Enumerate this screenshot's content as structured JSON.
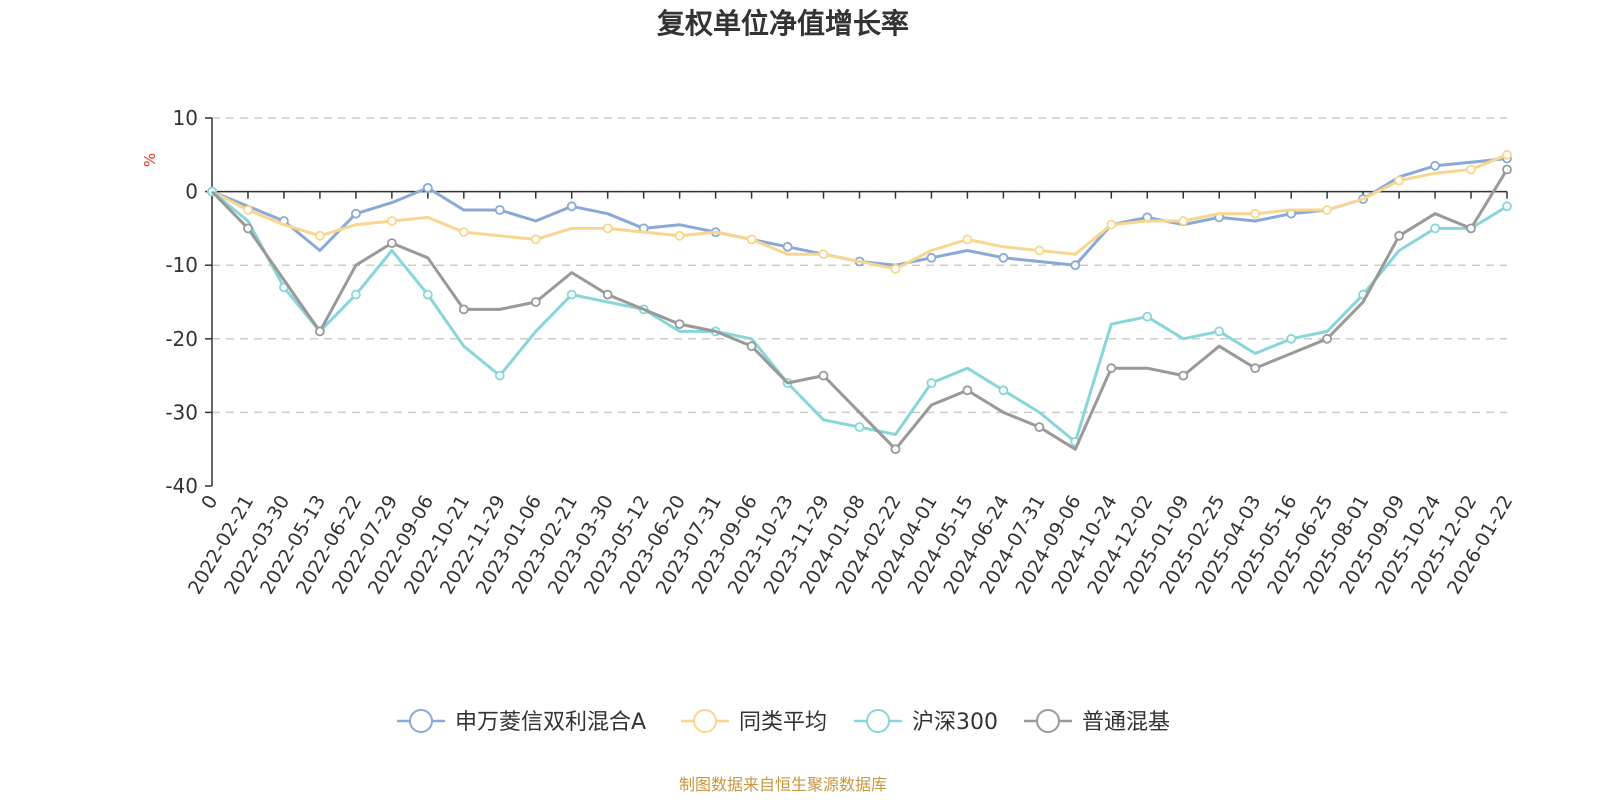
{
  "chart_data": {
    "type": "line",
    "title": "复权单位净值增长率",
    "ylabel": "%",
    "ylim": [
      -40,
      10
    ],
    "yticks": [
      10,
      0,
      -10,
      -20,
      -30,
      -40
    ],
    "grid": true,
    "legend_position": "bottom-center",
    "source": "制图数据来自恒生聚源数据库",
    "x_labels": [
      "0",
      "2022-02-21",
      "2022-03-30",
      "2022-05-13",
      "2022-06-22",
      "2022-07-29",
      "2022-09-06",
      "2022-10-21",
      "2022-11-29",
      "2023-01-06",
      "2023-02-21",
      "2023-03-30",
      "2023-05-12",
      "2023-06-20",
      "2023-07-31",
      "2023-09-06",
      "2023-10-23",
      "2023-11-29",
      "2024-01-08",
      "2024-02-22",
      "2024-04-01",
      "2024-05-15",
      "2024-06-24",
      "2024-07-31",
      "2024-09-06",
      "2024-10-24",
      "2024-12-02",
      "2025-01-09",
      "2025-02-25",
      "2025-04-03",
      "2025-05-16",
      "2025-06-25",
      "2025-08-01",
      "2025-09-09",
      "2025-10-24",
      "2025-12-02",
      "2026-01-22"
    ],
    "series": [
      {
        "name": "申万菱信双利混合A",
        "color": "#8aa9d6",
        "values": [
          0,
          -2,
          -4,
          -8,
          -3,
          -1.5,
          0.5,
          -2.5,
          -2.5,
          -4,
          -2,
          -3,
          -5,
          -4.5,
          -5.5,
          -6.5,
          -7.5,
          -8.5,
          -9.5,
          -10,
          -9,
          -8,
          -9,
          -9.5,
          -10,
          -4.5,
          -3.5,
          -4.5,
          -3.5,
          -4,
          -3,
          -2.5,
          -1,
          2,
          3.5,
          4,
          4.5
        ]
      },
      {
        "name": "同类平均",
        "color": "#f9d68f",
        "values": [
          0,
          -2.5,
          -4.5,
          -6,
          -4.5,
          -4,
          -3.5,
          -5.5,
          -6,
          -6.5,
          -5,
          -5,
          -5.5,
          -6,
          -5.5,
          -6.5,
          -8.5,
          -8.5,
          -9.5,
          -10.5,
          -8,
          -6.5,
          -7.5,
          -8,
          -8.5,
          -4.5,
          -4,
          -4,
          -3,
          -3,
          -2.5,
          -2.5,
          -1,
          1.5,
          2.5,
          3,
          5
        ]
      },
      {
        "name": "沪深300",
        "color": "#88d6d9",
        "values": [
          0,
          -4,
          -13,
          -19,
          -14,
          -8,
          -14,
          -21,
          -25,
          -19,
          -14,
          -15,
          -16,
          -19,
          -19,
          -20,
          -26,
          -31,
          -32,
          -33,
          -26,
          -24,
          -27,
          -30,
          -34,
          -18,
          -17,
          -20,
          -19,
          -22,
          -20,
          -19,
          -14,
          -8,
          -5,
          -5,
          -2
        ]
      },
      {
        "name": "普通混基",
        "color": "#999999",
        "values": [
          0,
          -5,
          -12,
          -19,
          -10,
          -7,
          -9,
          -16,
          -16,
          -15,
          -11,
          -14,
          -16,
          -18,
          -19,
          -21,
          -26,
          -25,
          -30,
          -35,
          -29,
          -27,
          -30,
          -32,
          -35,
          -24,
          -24,
          -25,
          -21,
          -24,
          -22,
          -20,
          -15,
          -6,
          -3,
          -5,
          3
        ]
      }
    ]
  }
}
